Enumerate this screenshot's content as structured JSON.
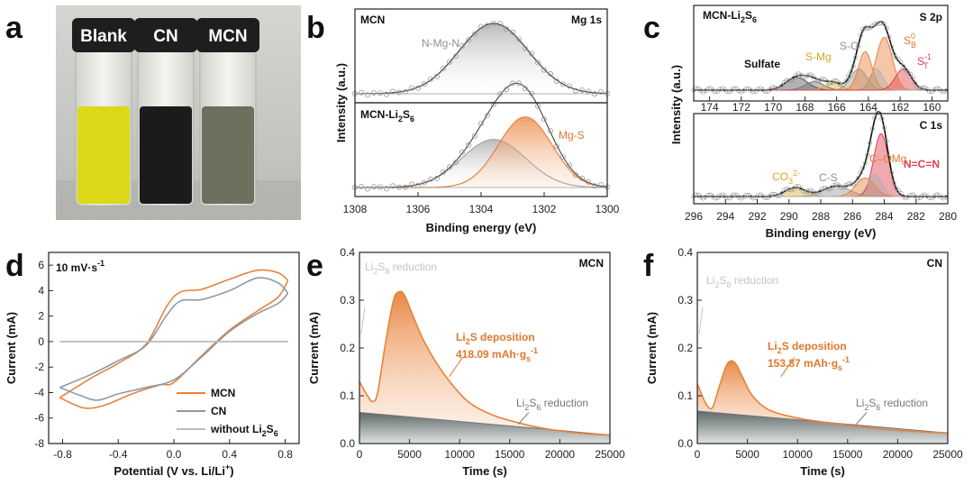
{
  "panel_letters": {
    "a": "a",
    "b": "b",
    "c": "c",
    "d": "d",
    "e": "e",
    "f": "f"
  },
  "photo": {
    "vials": [
      {
        "label": "Blank",
        "liquid_color": "#dcd81a"
      },
      {
        "label": "CN",
        "liquid_color": "#1b1b1b"
      },
      {
        "label": "MCN",
        "liquid_color": "#6c705c"
      }
    ],
    "colors": {
      "background": "#c9ccc7",
      "cap": "#1e1e1e",
      "glass": "#e6e7e2"
    }
  },
  "chart_data": [
    {
      "id": "b",
      "type": "line",
      "subtype": "xps-spectra",
      "xlabel": "Binding energy (eV)",
      "ylabel": "Intensity (a.u.)",
      "xlim": [
        1308,
        1300
      ],
      "x_reversed": true,
      "xticks": [
        1308,
        1306,
        1304,
        1302,
        1300
      ],
      "subplots": [
        {
          "sample_label": "MCN",
          "element_label": "Mg 1s",
          "peaks": [
            {
              "name": "N-Mg-N",
              "center": 1303.6,
              "fwhm": 2.6,
              "height": 1.0,
              "color": "#a8a8a8"
            }
          ]
        },
        {
          "sample_label": "MCN-Li2S6",
          "peaks": [
            {
              "name": "",
              "center": 1303.6,
              "fwhm": 2.4,
              "height": 0.58,
              "color": "#a8a8a8"
            },
            {
              "name": "Mg-S",
              "center": 1302.6,
              "fwhm": 2.0,
              "height": 0.85,
              "color": "#e8823a"
            }
          ]
        }
      ]
    },
    {
      "id": "c",
      "type": "line",
      "subtype": "xps-spectra",
      "xlabel": "Binding energy (eV)",
      "ylabel": "Intensity (a.u.)",
      "subplots": [
        {
          "sample_label": "MCN-Li2S6",
          "element_label": "S 2p",
          "xlim": [
            175,
            159
          ],
          "xticks": [
            174,
            172,
            170,
            168,
            166,
            164,
            162,
            160
          ],
          "annotations": [
            "Sulfate",
            "S-Mg",
            "S-C",
            "S_B^0",
            "S_T^-1"
          ],
          "peaks": [
            {
              "name": "Sulfate",
              "center": 168.5,
              "fwhm": 1.6,
              "height": 0.18,
              "color": "#555555"
            },
            {
              "name": "Sulfate-b",
              "center": 167.4,
              "fwhm": 1.4,
              "height": 0.12,
              "color": "#777777"
            },
            {
              "name": "S-Mg",
              "center": 166.2,
              "fwhm": 1.2,
              "height": 0.1,
              "color": "#e2b030"
            },
            {
              "name": "S-C",
              "center": 164.6,
              "fwhm": 1.2,
              "height": 0.3,
              "color": "#9a9a9a"
            },
            {
              "name": "S_B^0 a",
              "center": 164.2,
              "fwhm": 1.0,
              "height": 0.55,
              "color": "#e8823a"
            },
            {
              "name": "S_B^0 b",
              "center": 163.0,
              "fwhm": 1.2,
              "height": 0.75,
              "color": "#e8823a"
            },
            {
              "name": "S-C b",
              "center": 163.5,
              "fwhm": 1.0,
              "height": 0.3,
              "color": "#b0b0b0"
            },
            {
              "name": "S_T^-1",
              "center": 161.8,
              "fwhm": 1.2,
              "height": 0.3,
              "color": "#e04050"
            }
          ]
        },
        {
          "element_label": "C 1s",
          "xlim": [
            296,
            280
          ],
          "xticks": [
            296,
            294,
            292,
            290,
            288,
            286,
            284,
            282,
            280
          ],
          "annotations": [
            "CO3^2-",
            "C-S",
            "C–OMg",
            "N=C=N"
          ],
          "peaks": [
            {
              "name": "CO3^2-",
              "center": 289.6,
              "fwhm": 1.5,
              "height": 0.12,
              "color": "#e2b030"
            },
            {
              "name": "C-S",
              "center": 287.0,
              "fwhm": 2.0,
              "height": 0.14,
              "color": "#9a9a9a"
            },
            {
              "name": "C–OMg",
              "center": 285.2,
              "fwhm": 1.4,
              "height": 0.25,
              "color": "#e8823a"
            },
            {
              "name": "N=C=N",
              "center": 284.2,
              "fwhm": 1.1,
              "height": 0.85,
              "color": "#e04050"
            },
            {
              "name": "C-C",
              "center": 284.6,
              "fwhm": 1.0,
              "height": 0.3,
              "color": "#b0b0b0"
            }
          ]
        }
      ]
    },
    {
      "id": "d",
      "type": "line",
      "subtype": "cyclic-voltammetry",
      "scan_rate_label": "10 mV·s",
      "xlabel": "Potential (V vs. Li/Li",
      "ylabel": "Current (mA)",
      "xlim": [
        -0.9,
        0.9
      ],
      "ylim": [
        -8,
        7
      ],
      "xticks": [
        -0.8,
        -0.4,
        0.0,
        0.4,
        0.8
      ],
      "yticks": [
        -8,
        -6,
        -4,
        -2,
        0,
        2,
        4,
        6
      ],
      "legend_position": "lower-center",
      "series": [
        {
          "name": "MCN",
          "color": "#e8823a",
          "upper": {
            "x": [
              -0.82,
              -0.6,
              -0.4,
              -0.2,
              -0.05,
              0.05,
              0.2,
              0.4,
              0.6,
              0.75,
              0.82
            ],
            "y": [
              -4.4,
              -2.9,
              -1.7,
              -0.2,
              2.8,
              3.9,
              4.1,
              4.9,
              5.6,
              5.4,
              4.8
            ]
          },
          "lower": {
            "x": [
              -0.82,
              -0.65,
              -0.5,
              -0.3,
              -0.1,
              0.0,
              0.2,
              0.4,
              0.6,
              0.75,
              0.82
            ],
            "y": [
              -4.4,
              -5.2,
              -5.0,
              -4.1,
              -3.4,
              -3.2,
              -1.1,
              0.9,
              2.4,
              3.5,
              4.8
            ]
          }
        },
        {
          "name": "CN",
          "color": "#8a9ba8",
          "upper": {
            "x": [
              -0.82,
              -0.6,
              -0.4,
              -0.2,
              -0.05,
              0.05,
              0.2,
              0.4,
              0.6,
              0.75,
              0.82
            ],
            "y": [
              -3.6,
              -2.6,
              -1.5,
              -0.3,
              2.1,
              3.2,
              3.3,
              4.0,
              5.0,
              4.6,
              3.8
            ]
          },
          "lower": {
            "x": [
              -0.82,
              -0.68,
              -0.55,
              -0.4,
              -0.2,
              0.0,
              0.2,
              0.4,
              0.6,
              0.75,
              0.82
            ],
            "y": [
              -3.6,
              -4.2,
              -4.6,
              -4.1,
              -3.6,
              -3.0,
              -1.2,
              0.8,
              2.2,
              3.0,
              3.8
            ]
          }
        },
        {
          "name": "without Li2S6",
          "color": "#bdbdbd",
          "upper": {
            "x": [
              -0.82,
              0.82
            ],
            "y": [
              0.0,
              0.0
            ]
          },
          "lower": {
            "x": [
              -0.82,
              0.82
            ],
            "y": [
              0.0,
              0.0
            ]
          }
        }
      ]
    },
    {
      "id": "e",
      "type": "area",
      "subtype": "potentiostatic-discharge",
      "sample_label": "MCN",
      "xlabel": "Time (s)",
      "ylabel": "Current (mA)",
      "xlim": [
        0,
        25000
      ],
      "ylim": [
        0,
        0.4
      ],
      "xticks": [
        0,
        5000,
        10000,
        15000,
        20000,
        25000
      ],
      "yticks": [
        0.0,
        0.1,
        0.2,
        0.3,
        0.4
      ],
      "baseline": {
        "start": 0.065,
        "end": 0.018,
        "color": "#6e7575"
      },
      "curve": {
        "x": [
          0,
          300,
          800,
          1300,
          1800,
          2600,
          3400,
          4000,
          4500,
          5200,
          6200,
          7500,
          9000,
          11000,
          13500,
          16500,
          19500,
          22500,
          25000
        ],
        "y": [
          0.13,
          0.118,
          0.1,
          0.088,
          0.105,
          0.21,
          0.3,
          0.318,
          0.31,
          0.275,
          0.225,
          0.175,
          0.13,
          0.085,
          0.058,
          0.04,
          0.028,
          0.021,
          0.018
        ],
        "color": "#e8823a"
      },
      "annotations": {
        "reduction_top": {
          "base": "Li",
          "sub1": "2",
          "mid": "S",
          "sub2": "8",
          "tail": " reduction"
        },
        "deposition": {
          "base": "Li",
          "sub1": "2",
          "tail": "S deposition"
        },
        "capacity": {
          "value": "418.09 mAh·g",
          "sub": "s",
          "sup": "-1"
        },
        "reduction_bottom": {
          "base": "Li",
          "sub1": "2",
          "mid": "S",
          "sub2": "6",
          "tail": " reduction"
        }
      }
    },
    {
      "id": "f",
      "type": "area",
      "subtype": "potentiostatic-discharge",
      "sample_label": "CN",
      "xlabel": "Time (s)",
      "ylabel": "Current (mA)",
      "xlim": [
        0,
        25000
      ],
      "ylim": [
        0,
        0.4
      ],
      "xticks": [
        0,
        5000,
        10000,
        15000,
        20000,
        25000
      ],
      "yticks": [
        0.0,
        0.1,
        0.2,
        0.3,
        0.4
      ],
      "baseline": {
        "start": 0.068,
        "end": 0.022,
        "color": "#6e7575"
      },
      "curve": {
        "x": [
          0,
          400,
          900,
          1500,
          2200,
          2900,
          3400,
          3900,
          4600,
          5500,
          7000,
          9000,
          11500,
          14500,
          17500,
          21000,
          25000
        ],
        "y": [
          0.125,
          0.105,
          0.082,
          0.075,
          0.12,
          0.163,
          0.173,
          0.165,
          0.135,
          0.1,
          0.072,
          0.058,
          0.048,
          0.04,
          0.032,
          0.026,
          0.022
        ],
        "color": "#e8823a"
      },
      "annotations": {
        "reduction_top": {
          "base": "Li",
          "sub1": "2",
          "mid": "S",
          "sub2": "8",
          "tail": " reduction"
        },
        "deposition": {
          "base": "Li",
          "sub1": "2",
          "tail": "S deposition"
        },
        "capacity": {
          "value": "153.87 mAh·g",
          "sub": "s",
          "sup": "-1"
        },
        "reduction_bottom": {
          "base": "Li",
          "sub1": "2",
          "mid": "S",
          "sub2": "6",
          "tail": " reduction"
        }
      }
    }
  ]
}
